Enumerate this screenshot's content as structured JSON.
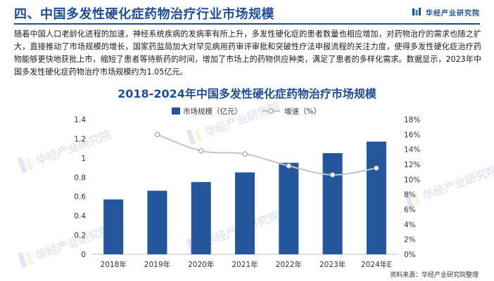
{
  "header": {
    "title": "四、中国多发性硬化症药物治疗行业市场规模",
    "brand": "华经产业研究院"
  },
  "intro_text": "随着中国人口老龄化进程的加速，神经系统疾病的发病率有所上升，多发性硬化症的患者数量也相应增加，对药物治疗的需求也随之扩大，直接推动了市场规模的增长，国家药监局加大对罕见病用药审评审批和突破性疗法申报流程的关注力度，使得多发性硬化症治疗药物能够更快地获批上市，缩短了患者等待新药的时间，增加了市场上的药物供应种类，满足了患者的多样化需求。数据显示，2023年中国多发性硬化症药物治疗市场规模约为1.05亿元。",
  "watermark": "华经产业研究院",
  "source": "资料来源：华经产业研究院整理",
  "colors": {
    "brand": "#1f4e96",
    "bar": "#24569b",
    "line": "#c4c4c4",
    "marker_fill": "#ffffff"
  },
  "chart_data": {
    "type": "bar",
    "title": "2018-2024年中国多发性硬化症药物治疗市场规模",
    "categories": [
      "2018年",
      "2019年",
      "2020年",
      "2021年",
      "2022年",
      "2023年",
      "2024年E"
    ],
    "series": [
      {
        "name": "市场规模（亿元）",
        "type": "bar",
        "axis": "left",
        "values": [
          0.57,
          0.66,
          0.75,
          0.85,
          0.95,
          1.05,
          1.17
        ]
      },
      {
        "name": "增速（%）",
        "type": "line",
        "axis": "right",
        "values": [
          null,
          16.0,
          13.8,
          13.4,
          11.8,
          10.6,
          11.5
        ]
      }
    ],
    "y_left": {
      "min": 0,
      "max": 1.4,
      "ticks": [
        "0",
        "0.2",
        "0.4",
        "0.6",
        "0.8",
        "1",
        "1.2",
        "1.4"
      ]
    },
    "y_right": {
      "min": 0,
      "max": 18,
      "ticks": [
        "0%",
        "2%",
        "4%",
        "6%",
        "8%",
        "10%",
        "12%",
        "14%",
        "16%",
        "18%"
      ]
    },
    "legend_position": "top",
    "grid": false
  }
}
